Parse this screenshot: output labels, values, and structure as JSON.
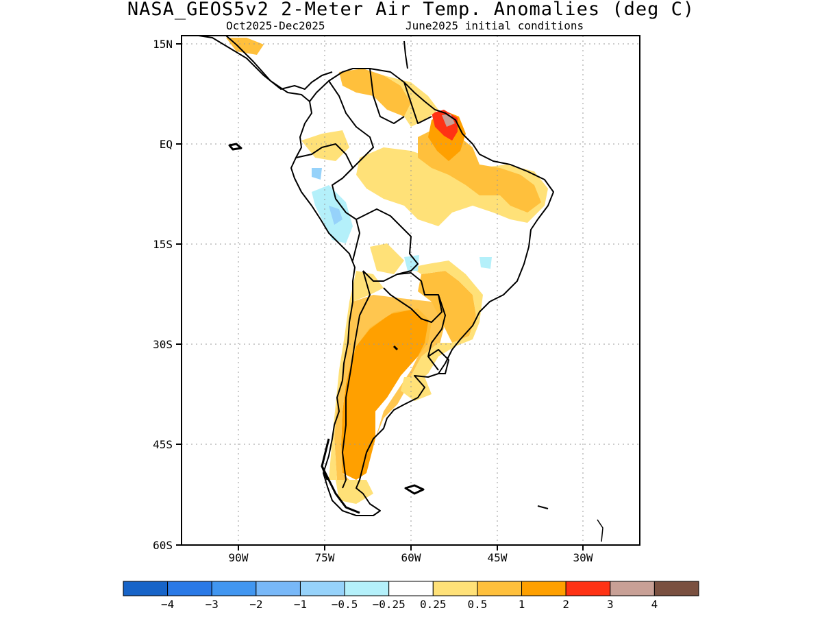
{
  "title": "NASA_GEOS5v2 2-Meter Air Temp. Anomalies (deg C)",
  "subtitle_left": "Oct2025-Dec2025",
  "subtitle_right": "June2025 initial conditions",
  "lat_labels": [
    "15N",
    "EQ",
    "15S",
    "30S",
    "45S",
    "60S"
  ],
  "lon_labels": [
    "90W",
    "75W",
    "60W",
    "45W",
    "30W"
  ],
  "colorbar": {
    "colors": [
      "#1764c8",
      "#2a79e6",
      "#4196f0",
      "#78b8f8",
      "#96d2fa",
      "#b4f0fa",
      "#ffffff",
      "#ffe178",
      "#ffc03c",
      "#ffa000",
      "#ff3214",
      "#c8a096",
      "#7a5040"
    ],
    "labels": [
      "-4",
      "-3",
      "-2",
      "-1",
      "-0.5",
      "-0.25",
      "0.25",
      "0.5",
      "1",
      "2",
      "3",
      "4"
    ]
  }
}
